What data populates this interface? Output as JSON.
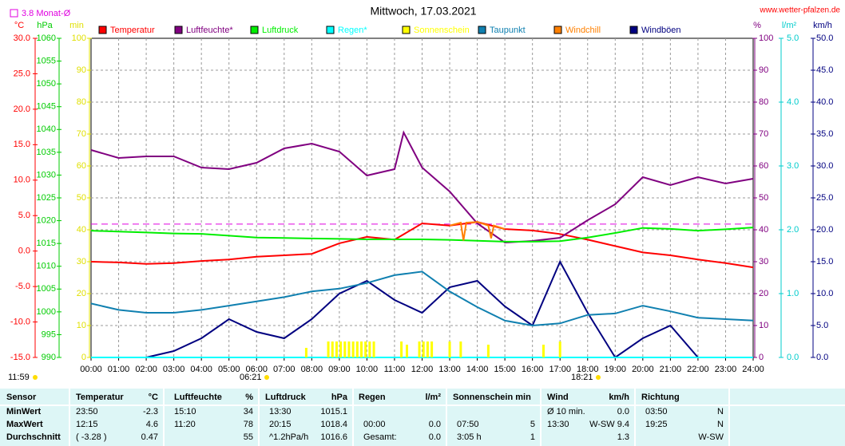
{
  "chart_data": {
    "type": "line",
    "title": "Mittwoch, 17.03.2021",
    "source": "www.wetter-pfalzen.de",
    "reference": {
      "value": 3.8,
      "label": "3.8 Monat-Ø",
      "color": "#e000e0",
      "axis": 0
    },
    "updated": "11:59",
    "sunrise": "06:21",
    "sunset": "18:21",
    "grid": true,
    "xlim": [
      0,
      24
    ],
    "xticks": [
      {
        "value": 0,
        "label": "00:00"
      },
      {
        "value": 1,
        "label": "01:00"
      },
      {
        "value": 2,
        "label": "02:00"
      },
      {
        "value": 3,
        "label": "03:00"
      },
      {
        "value": 4,
        "label": "04:00"
      },
      {
        "value": 5,
        "label": "05:00"
      },
      {
        "value": 6,
        "label": "06:00"
      },
      {
        "value": 7,
        "label": "07:00"
      },
      {
        "value": 8,
        "label": "08:00"
      },
      {
        "value": 9,
        "label": "09:00"
      },
      {
        "value": 10,
        "label": "10:00"
      },
      {
        "value": 11,
        "label": "11:00"
      },
      {
        "value": 12,
        "label": "12:00"
      },
      {
        "value": 13,
        "label": "13:00"
      },
      {
        "value": 14,
        "label": "14:00"
      },
      {
        "value": 15,
        "label": "15:00"
      },
      {
        "value": 16,
        "label": "16:00"
      },
      {
        "value": 17,
        "label": "17:00"
      },
      {
        "value": 18,
        "label": "18:00"
      },
      {
        "value": 19,
        "label": "19:00"
      },
      {
        "value": 20,
        "label": "20:00"
      },
      {
        "value": 21,
        "label": "21:00"
      },
      {
        "value": 22,
        "label": "22:00"
      },
      {
        "value": 23,
        "label": "23:00"
      },
      {
        "value": 24,
        "label": "24:00"
      }
    ],
    "axes": [
      {
        "unit": "°C",
        "color": "#ff0000",
        "lim": [
          -15,
          30
        ],
        "ticks": [
          {
            "value": -15,
            "label": "-15.0"
          },
          {
            "value": -10,
            "label": "-10.0"
          },
          {
            "value": -5,
            "label": "-5.0"
          },
          {
            "value": 0,
            "label": "0.0"
          },
          {
            "value": 5,
            "label": "5.0"
          },
          {
            "value": 10,
            "label": "10.0"
          },
          {
            "value": 15,
            "label": "15.0"
          },
          {
            "value": 20,
            "label": "20.0"
          },
          {
            "value": 25,
            "label": "25.0"
          },
          {
            "value": 30,
            "label": "30.0"
          }
        ]
      },
      {
        "unit": "hPa",
        "color": "#00cc00",
        "lim": [
          990,
          1060
        ],
        "ticks": [
          990,
          995,
          1000,
          1005,
          1010,
          1015,
          1020,
          1025,
          1030,
          1035,
          1040,
          1045,
          1050,
          1055,
          1060
        ]
      },
      {
        "unit": "min",
        "color": "#e0e000",
        "lim": [
          0,
          100
        ],
        "ticks": [
          0,
          10,
          20,
          30,
          40,
          50,
          60,
          70,
          80,
          90,
          100
        ]
      },
      {
        "unit": "%",
        "color": "#800080",
        "lim": [
          0,
          100
        ],
        "ticks": [
          0,
          10,
          20,
          30,
          40,
          50,
          60,
          70,
          80,
          90,
          100
        ]
      },
      {
        "unit": "l/m²",
        "color": "#00cccc",
        "lim": [
          0,
          5
        ],
        "ticks": [
          {
            "value": 0,
            "label": "0.0"
          },
          {
            "value": 1,
            "label": "1.0"
          },
          {
            "value": 2,
            "label": "2.0"
          },
          {
            "value": 3,
            "label": "3.0"
          },
          {
            "value": 4,
            "label": "4.0"
          },
          {
            "value": 5,
            "label": "5.0"
          }
        ]
      },
      {
        "unit": "km/h",
        "color": "#000080",
        "lim": [
          0,
          50
        ],
        "ticks": [
          {
            "value": 0,
            "label": "0.0"
          },
          {
            "value": 5,
            "label": "5.0"
          },
          {
            "value": 10,
            "label": "10.0"
          },
          {
            "value": 15,
            "label": "15.0"
          },
          {
            "value": 20,
            "label": "20.0"
          },
          {
            "value": 25,
            "label": "25.0"
          },
          {
            "value": 30,
            "label": "30.0"
          },
          {
            "value": 35,
            "label": "35.0"
          },
          {
            "value": 40,
            "label": "40.0"
          },
          {
            "value": 45,
            "label": "45.0"
          },
          {
            "value": 50,
            "label": "50.0"
          }
        ]
      }
    ],
    "x": [
      0,
      1,
      2,
      3,
      4,
      5,
      6,
      7,
      8,
      9,
      10,
      11,
      12,
      13,
      14,
      15,
      16,
      17,
      18,
      19,
      20,
      21,
      22,
      23,
      24
    ],
    "series": [
      {
        "name": "Temperatur",
        "color": "#ff0000",
        "axis": 0,
        "style": "line",
        "values": [
          -1.5,
          -1.6,
          -1.8,
          -1.7,
          -1.4,
          -1.2,
          -0.8,
          -0.6,
          -0.4,
          1.1,
          2.0,
          1.6,
          3.9,
          3.6,
          4.1,
          3.1,
          2.9,
          2.4,
          1.6,
          0.7,
          -0.2,
          -0.6,
          -1.2,
          -1.7,
          -2.3
        ]
      },
      {
        "name": "Luftfeuchte*",
        "color": "#800080",
        "axis": 3,
        "style": "line",
        "x": [
          0,
          1,
          2,
          3,
          4,
          5,
          6,
          7,
          8,
          9,
          10,
          11,
          11.33,
          12,
          13,
          14,
          15,
          16,
          17,
          18,
          19,
          20,
          21,
          22,
          23,
          24
        ],
        "values": [
          65,
          62.5,
          63,
          63,
          59.5,
          59,
          61,
          65.5,
          67,
          64.5,
          57,
          59,
          70.5,
          59.5,
          52,
          42,
          36,
          36.5,
          37.5,
          43,
          48,
          56.5,
          54,
          56.5,
          54.5,
          56
        ]
      },
      {
        "name": "Luftdruck",
        "color": "#00ee00",
        "axis": 1,
        "style": "line",
        "values": [
          1017.8,
          1017.6,
          1017.4,
          1017.2,
          1017.1,
          1016.7,
          1016.3,
          1016.2,
          1016.1,
          1016.0,
          1015.9,
          1015.9,
          1015.9,
          1015.8,
          1015.6,
          1015.4,
          1015.4,
          1015.5,
          1016.3,
          1017.3,
          1018.4,
          1018.2,
          1017.8,
          1018.1,
          1018.5
        ]
      },
      {
        "name": "Regen*",
        "color": "#00ffff",
        "axis": 4,
        "style": "line",
        "x": [
          0,
          24
        ],
        "values": [
          0,
          0
        ]
      },
      {
        "name": "Sonnenschein",
        "color": "#ffff00",
        "axis": 2,
        "style": "bar",
        "x": [
          7.8,
          8.6,
          8.75,
          8.9,
          9.05,
          9.2,
          9.35,
          9.5,
          9.65,
          9.8,
          9.95,
          10.1,
          10.25,
          11.25,
          11.45,
          11.9,
          12.05,
          12.2,
          12.35,
          13.0,
          13.4,
          14.4,
          16.4,
          17.0
        ],
        "values": [
          3,
          5,
          5,
          5,
          5,
          5,
          5,
          5,
          5,
          5,
          5,
          5,
          5,
          5,
          4,
          5,
          5,
          5,
          5,
          5,
          5,
          4,
          4,
          5
        ]
      },
      {
        "name": "Taupunkt",
        "color": "#1080b0",
        "axis": 0,
        "style": "line",
        "values": [
          -7.4,
          -8.3,
          -8.7,
          -8.7,
          -8.3,
          -7.7,
          -7.1,
          -6.5,
          -5.7,
          -5.3,
          -4.5,
          -3.4,
          -2.9,
          -5.7,
          -7.9,
          -9.8,
          -10.5,
          -10.2,
          -9.0,
          -8.8,
          -7.7,
          -8.5,
          -9.4,
          -9.6,
          -9.8
        ]
      },
      {
        "name": "Windchill",
        "color": "#ff8000",
        "axis": 0,
        "style": "line",
        "x": [
          13.0,
          13.4,
          13.5,
          13.6,
          14.0,
          14.4,
          14.5,
          14.6,
          15.0
        ],
        "values": [
          3.6,
          4.0,
          1.5,
          4.0,
          4.1,
          3.6,
          1.8,
          3.6,
          3.1
        ]
      },
      {
        "name": "Windböen",
        "color": "#000080",
        "axis": 5,
        "style": "line",
        "values": [
          0,
          0,
          0,
          1,
          3,
          6,
          4,
          3,
          6,
          10,
          12,
          9,
          7,
          11,
          12,
          8,
          5,
          15,
          7,
          0,
          3,
          5,
          0,
          0,
          0
        ]
      }
    ]
  },
  "table": {
    "headers": [
      "Sensor",
      "Temperatur",
      "°C",
      "Luftfeuchte",
      "%",
      "Luftdruck",
      "hPa",
      "Regen",
      "l/m²",
      "Sonnenschein min",
      "Wind",
      "km/h",
      "Richtung"
    ],
    "rows": [
      [
        "MinWert",
        "23:50",
        "-2.3",
        "15:10",
        "34",
        "13:30",
        "1015.1",
        null,
        null,
        null,
        null,
        "Ø 10 min.",
        "0.0",
        "03:50",
        "N"
      ],
      [
        "MaxWert",
        "12:15",
        "4.6",
        "11:20",
        "78",
        "20:15",
        "1018.4",
        "00:00",
        "0.0",
        "07:50",
        "5",
        "13:30",
        "W-SW 9.4",
        "19:25",
        "N"
      ],
      [
        "Durchschnitt",
        "( -3.28 )",
        "0.47",
        null,
        "55",
        "^1.2hPa/h",
        "1016.6",
        "Gesamt:",
        "0.0",
        "3:05 h",
        "1",
        null,
        "1.3",
        null,
        "W-SW"
      ]
    ]
  }
}
